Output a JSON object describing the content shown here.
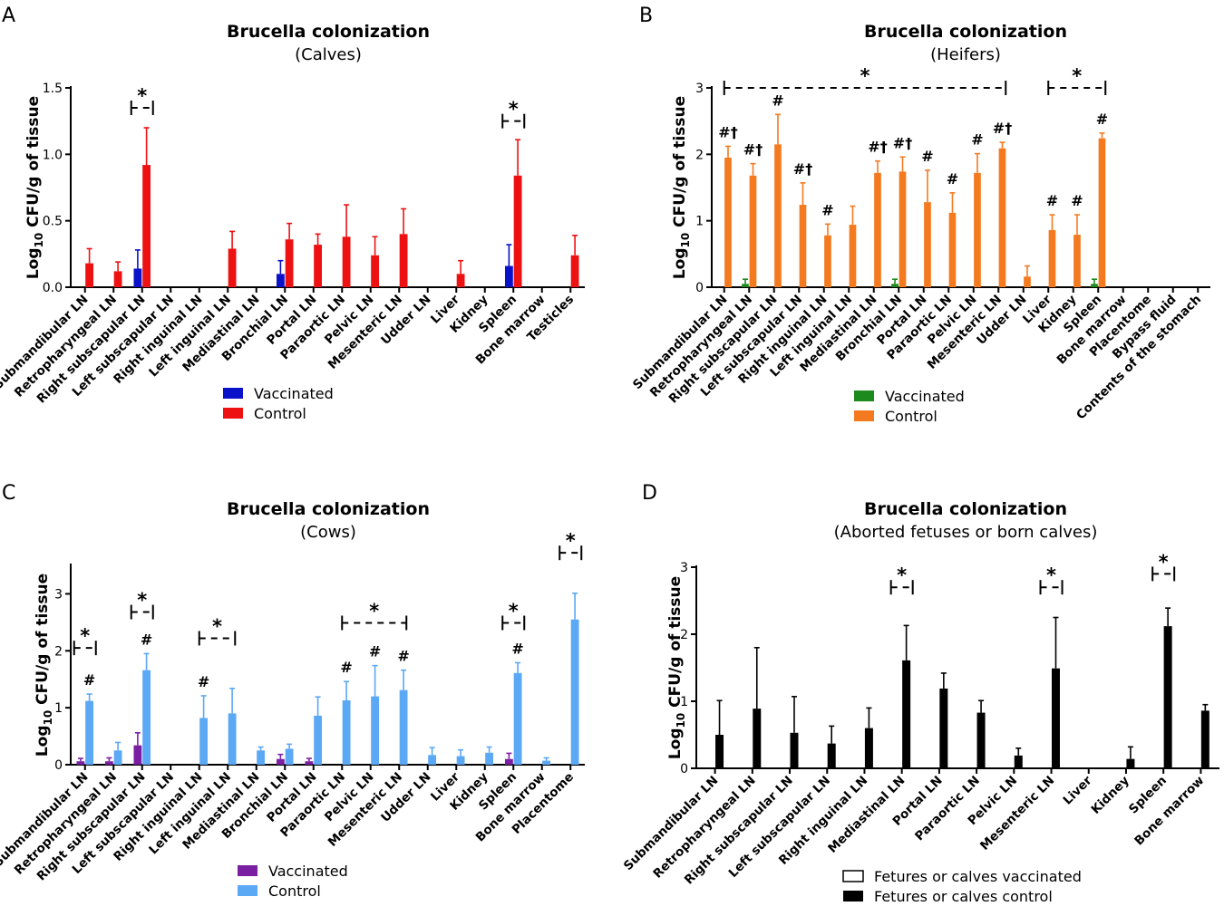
{
  "panels": [
    {
      "letter": "A",
      "chart_data": {
        "type": "bar",
        "title": "Brucella colonization",
        "subtitle": "(Calves)",
        "ylabel": "Log10 CFU/g of tissue",
        "ylim": [
          0,
          1.5
        ],
        "yticks": [
          "0.0",
          "0.5",
          "1.0",
          "1.5"
        ],
        "categories": [
          "Submandibular LN",
          "Retropharyngeal LN",
          "Right subscapular LN",
          "Left subscapular LN",
          "Right inguinal LN",
          "Left inguinal LN",
          "Mediastinal LN",
          "Bronchial LN",
          "Portal LN",
          "Paraortic LN",
          "Pelvic LN",
          "Mesenteric LN",
          "Udder LN",
          "Liver",
          "Kidney",
          "Spleen",
          "Bone marrow",
          "Testicles"
        ],
        "series": [
          {
            "name": "Vaccinated",
            "color": "#0a12c9",
            "values": [
              0,
              0,
              0.14,
              0,
              0,
              0,
              0,
              0.1,
              0,
              0,
              0,
              0,
              0,
              0,
              0,
              0.16,
              0,
              0
            ],
            "errors": [
              0,
              0,
              0.14,
              0,
              0,
              0,
              0,
              0.1,
              0,
              0,
              0,
              0,
              0,
              0,
              0,
              0.16,
              0,
              0
            ]
          },
          {
            "name": "Control",
            "color": "#ee1111",
            "values": [
              0.18,
              0.12,
              0.92,
              0,
              0,
              0.29,
              0,
              0.36,
              0.32,
              0.38,
              0.24,
              0.4,
              0,
              0.1,
              0,
              0.84,
              0,
              0.24
            ],
            "errors": [
              0.11,
              0.07,
              0.28,
              0,
              0,
              0.13,
              0,
              0.12,
              0.08,
              0.24,
              0.14,
              0.19,
              0,
              0.1,
              0,
              0.27,
              0,
              0.15
            ]
          }
        ],
        "significance": [
          {
            "from": 2,
            "to": 2,
            "label": "*",
            "y": 1.35
          },
          {
            "from": 15,
            "to": 15,
            "label": "*",
            "y": 1.25
          }
        ],
        "hash_marks": []
      }
    },
    {
      "letter": "B",
      "chart_data": {
        "type": "bar",
        "title": "Brucella colonization",
        "subtitle": "(Heifers)",
        "ylabel": "Log10 CFU/g of tissue",
        "ylim": [
          0,
          3
        ],
        "yticks": [
          "0",
          "1",
          "2",
          "3"
        ],
        "categories": [
          "Submandibular LN",
          "Retropharyngeal LN",
          "Right subscapular LN",
          "Left subscapular LN",
          "Right inguinal LN",
          "Left inguinal LN",
          "Mediastinal LN",
          "Bronchial LN",
          "Portal LN",
          "Paraortic LN",
          "Pelvic LN",
          "Mesenteric LN",
          "Udder LN",
          "Liver",
          "Kidney",
          "Spleen",
          "Bone marrow",
          "Placentome",
          "Bypass fluid",
          "Contents of the stomach"
        ],
        "series": [
          {
            "name": "Vaccinated",
            "color": "#1d8a1d",
            "values": [
              0,
              0.05,
              0,
              0,
              0,
              0,
              0,
              0.05,
              0,
              0,
              0,
              0,
              0,
              0,
              0,
              0.05,
              0,
              0,
              0,
              0
            ],
            "errors": [
              0,
              0.07,
              0,
              0,
              0,
              0,
              0,
              0.07,
              0,
              0,
              0,
              0,
              0,
              0,
              0,
              0.07,
              0,
              0,
              0,
              0
            ]
          },
          {
            "name": "Control",
            "color": "#f47a20",
            "values": [
              1.95,
              1.68,
              2.15,
              1.24,
              0.78,
              0.94,
              1.72,
              1.74,
              1.28,
              1.12,
              1.72,
              2.09,
              0.16,
              0.86,
              0.79,
              2.24,
              0,
              0,
              0,
              0
            ],
            "errors": [
              0.17,
              0.18,
              0.45,
              0.33,
              0.17,
              0.28,
              0.18,
              0.22,
              0.48,
              0.3,
              0.29,
              0.09,
              0.16,
              0.23,
              0.3,
              0.08,
              0,
              0,
              0,
              0
            ]
          }
        ],
        "significance": [
          {
            "from": 0,
            "to": 11,
            "label": "*",
            "y": 3.0
          },
          {
            "from": 13,
            "to": 15,
            "label": "*",
            "y": 3.0
          }
        ],
        "hash_marks": [
          {
            "cat": 0,
            "label": "#†"
          },
          {
            "cat": 1,
            "label": "#†"
          },
          {
            "cat": 2,
            "label": "#"
          },
          {
            "cat": 3,
            "label": "#†"
          },
          {
            "cat": 4,
            "label": "#"
          },
          {
            "cat": 6,
            "label": "#†"
          },
          {
            "cat": 7,
            "label": "#†"
          },
          {
            "cat": 8,
            "label": "#"
          },
          {
            "cat": 9,
            "label": "#"
          },
          {
            "cat": 10,
            "label": "#"
          },
          {
            "cat": 11,
            "label": "#†"
          },
          {
            "cat": 13,
            "label": "#"
          },
          {
            "cat": 14,
            "label": "#"
          },
          {
            "cat": 15,
            "label": "#"
          }
        ]
      }
    },
    {
      "letter": "C",
      "chart_data": {
        "type": "bar",
        "title": "Brucella colonization",
        "subtitle": "(Cows)",
        "ylabel": "Log10 CFU/g of tissue",
        "ylim": [
          0,
          3.5
        ],
        "yticks": [
          "0",
          "1",
          "2",
          "3"
        ],
        "categories": [
          "Submandibular LN",
          "Retropharyngeal LN",
          "Right subscapular LN",
          "Left subscapular LN",
          "Right inguinal LN",
          "Left inguinal LN",
          "Mediastinal LN",
          "Bronchial LN",
          "Portal LN",
          "Paraortic LN",
          "Pelvic LN",
          "Mesenteric LN",
          "Udder LN",
          "Liver",
          "Kidney",
          "Spleen",
          "Bone marrow",
          "Placentome"
        ],
        "series": [
          {
            "name": "Vaccinated",
            "color": "#7b1fa2",
            "values": [
              0.06,
              0.06,
              0.34,
              0,
              0,
              0,
              0,
              0.1,
              0.06,
              0,
              0,
              0,
              0,
              0,
              0,
              0.1,
              0,
              0
            ],
            "errors": [
              0.05,
              0.06,
              0.22,
              0,
              0,
              0,
              0,
              0.08,
              0.05,
              0,
              0,
              0,
              0,
              0,
              0,
              0.1,
              0,
              0
            ]
          },
          {
            "name": "Control",
            "color": "#5ba8f5",
            "values": [
              1.12,
              0.25,
              1.66,
              0,
              0.82,
              0.9,
              0.25,
              0.28,
              0.86,
              1.13,
              1.2,
              1.31,
              0.17,
              0.15,
              0.21,
              1.61,
              0.07,
              2.55
            ],
            "errors": [
              0.12,
              0.14,
              0.29,
              0,
              0.39,
              0.44,
              0.06,
              0.08,
              0.33,
              0.33,
              0.54,
              0.35,
              0.13,
              0.11,
              0.1,
              0.18,
              0.05,
              0.46
            ]
          }
        ],
        "significance": [
          {
            "from": 0,
            "to": 0,
            "label": "*",
            "y": 2.05
          },
          {
            "from": 2,
            "to": 2,
            "label": "*",
            "y": 2.68
          },
          {
            "from": 4,
            "to": 5,
            "label": "*",
            "y": 2.22
          },
          {
            "from": 9,
            "to": 11,
            "label": "*",
            "y": 2.49
          },
          {
            "from": 15,
            "to": 15,
            "label": "*",
            "y": 2.49
          },
          {
            "from": 17,
            "to": 17,
            "label": "*",
            "y": 3.72
          }
        ],
        "hash_marks": [
          {
            "cat": 0,
            "label": "#"
          },
          {
            "cat": 2,
            "label": "#"
          },
          {
            "cat": 4,
            "label": "#"
          },
          {
            "cat": 9,
            "label": "#"
          },
          {
            "cat": 10,
            "label": "#"
          },
          {
            "cat": 11,
            "label": "#"
          },
          {
            "cat": 15,
            "label": "#"
          }
        ]
      }
    },
    {
      "letter": "D",
      "chart_data": {
        "type": "bar",
        "title": "Brucella colonization",
        "subtitle": "(Aborted fetuses or born calves)",
        "ylabel": "Log10 CFU/g of tissue",
        "ylim": [
          0,
          3
        ],
        "yticks": [
          "0",
          "1",
          "2",
          "3"
        ],
        "categories": [
          "Submandibular LN",
          "Retropharyngeal LN",
          "Right subscapular LN",
          "Left subscapular LN",
          "Right inguinal LN",
          "Mediastinal LN",
          "Portal LN",
          "Paraortic LN",
          "Pelvic LN",
          "Mesenteric LN",
          "Liver",
          "Kidney",
          "Spleen",
          "Bone marrow"
        ],
        "series": [
          {
            "name": "Fetures or calves vaccinated",
            "color": "#ffffff",
            "values": [
              0,
              0,
              0,
              0,
              0,
              0,
              0,
              0,
              0,
              0,
              0,
              0,
              0,
              0
            ],
            "errors": [
              0,
              0,
              0,
              0,
              0,
              0,
              0,
              0,
              0,
              0,
              0,
              0,
              0,
              0
            ]
          },
          {
            "name": "Fetures or calves control",
            "color": "#000000",
            "values": [
              0.5,
              0.89,
              0.53,
              0.37,
              0.6,
              1.61,
              1.19,
              0.83,
              0.19,
              1.49,
              0,
              0.14,
              2.12,
              0.86
            ],
            "errors": [
              0.51,
              0.91,
              0.54,
              0.26,
              0.3,
              0.52,
              0.23,
              0.18,
              0.11,
              0.76,
              0,
              0.18,
              0.27,
              0.09
            ]
          }
        ],
        "significance": [
          {
            "from": 5,
            "to": 5,
            "label": "*",
            "y": 2.7
          },
          {
            "from": 9,
            "to": 9,
            "label": "*",
            "y": 2.7
          },
          {
            "from": 12,
            "to": 12,
            "label": "*",
            "y": 2.9
          }
        ],
        "hash_marks": []
      }
    }
  ]
}
